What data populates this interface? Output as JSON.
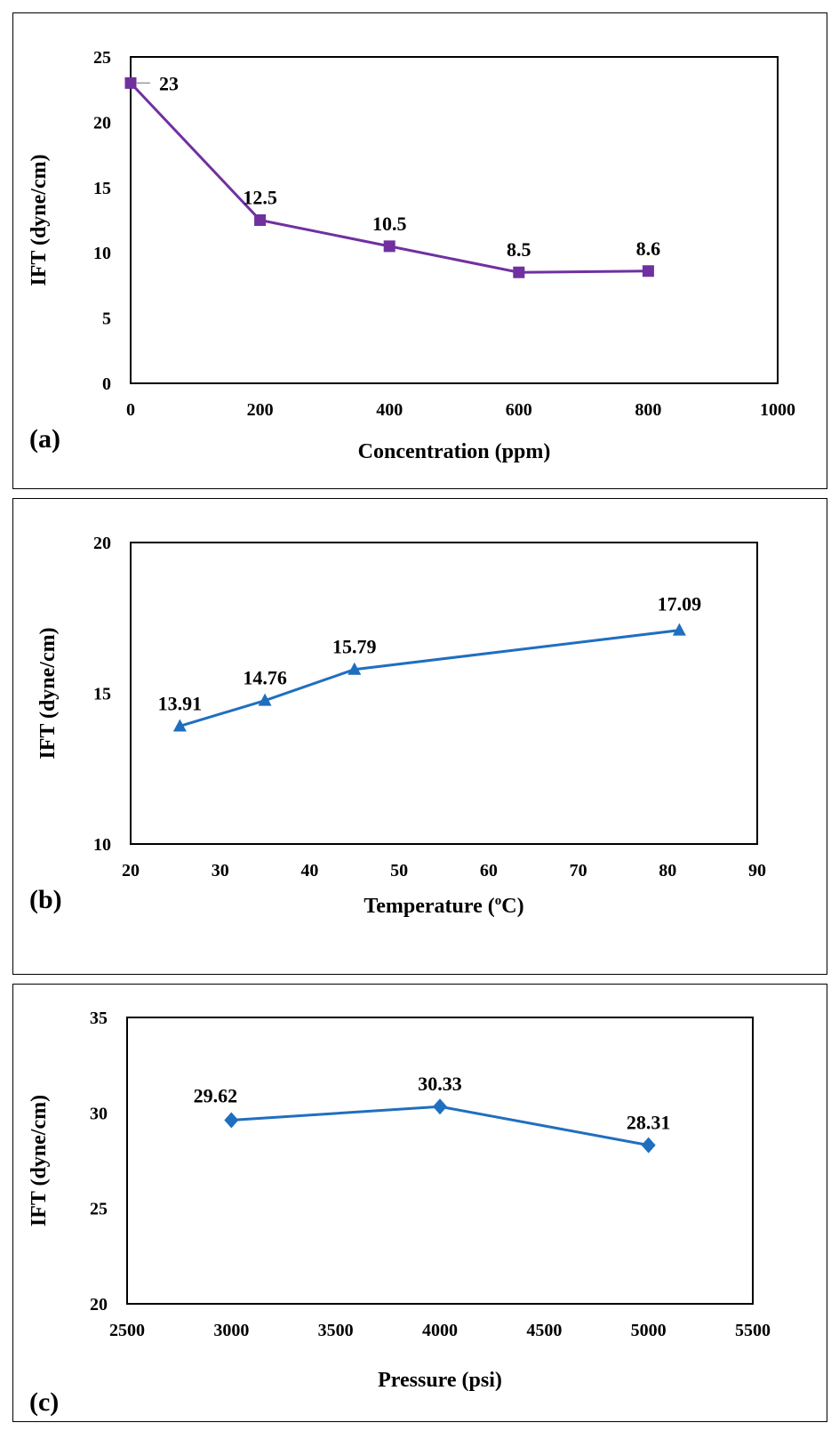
{
  "chart_data": [
    {
      "type": "line",
      "panel_label": "(a)",
      "xlabel": "Concentration (ppm)",
      "ylabel": "IFT (dyne/cm)",
      "xlim": [
        0,
        1000
      ],
      "ylim": [
        0,
        25
      ],
      "x_ticks": [
        0,
        200,
        400,
        600,
        800,
        1000
      ],
      "y_ticks": [
        0,
        5,
        10,
        15,
        20,
        25
      ],
      "marker": "square",
      "color": "#7030A0",
      "grid": false,
      "x": [
        0,
        200,
        400,
        600,
        800
      ],
      "values": [
        23,
        12.5,
        10.5,
        8.5,
        8.6
      ],
      "data_labels": [
        "23",
        "12.5",
        "10.5",
        "8.5",
        "8.6"
      ]
    },
    {
      "type": "line",
      "panel_label": "(b)",
      "xlabel_main": "Temperature (",
      "xlabel_sup": "o",
      "xlabel_end": "C)",
      "ylabel": "IFT (dyne/cm)",
      "xlim": [
        20,
        90
      ],
      "ylim": [
        10,
        20
      ],
      "x_ticks": [
        20,
        30,
        40,
        50,
        60,
        70,
        80,
        90
      ],
      "y_ticks": [
        10,
        15,
        20
      ],
      "marker": "triangle",
      "color": "#1F6FBF",
      "grid": false,
      "x": [
        25.5,
        35,
        45,
        81.3
      ],
      "values": [
        13.91,
        14.76,
        15.79,
        17.09
      ],
      "data_labels": [
        "13.91",
        "14.76",
        "15.79",
        "17.09"
      ]
    },
    {
      "type": "line",
      "panel_label": "(c)",
      "xlabel": "Pressure (psi)",
      "ylabel": "IFT (dyne/cm)",
      "xlim": [
        2500,
        5500
      ],
      "ylim": [
        20,
        35
      ],
      "x_ticks": [
        2500,
        3000,
        3500,
        4000,
        4500,
        5000,
        5500
      ],
      "y_ticks": [
        20,
        25,
        30,
        35
      ],
      "marker": "diamond",
      "color": "#1F6FBF",
      "grid": false,
      "x": [
        3000,
        4000,
        5000
      ],
      "values": [
        29.62,
        30.33,
        28.31
      ],
      "data_labels": [
        "29.62",
        "30.33",
        "28.31"
      ]
    }
  ]
}
